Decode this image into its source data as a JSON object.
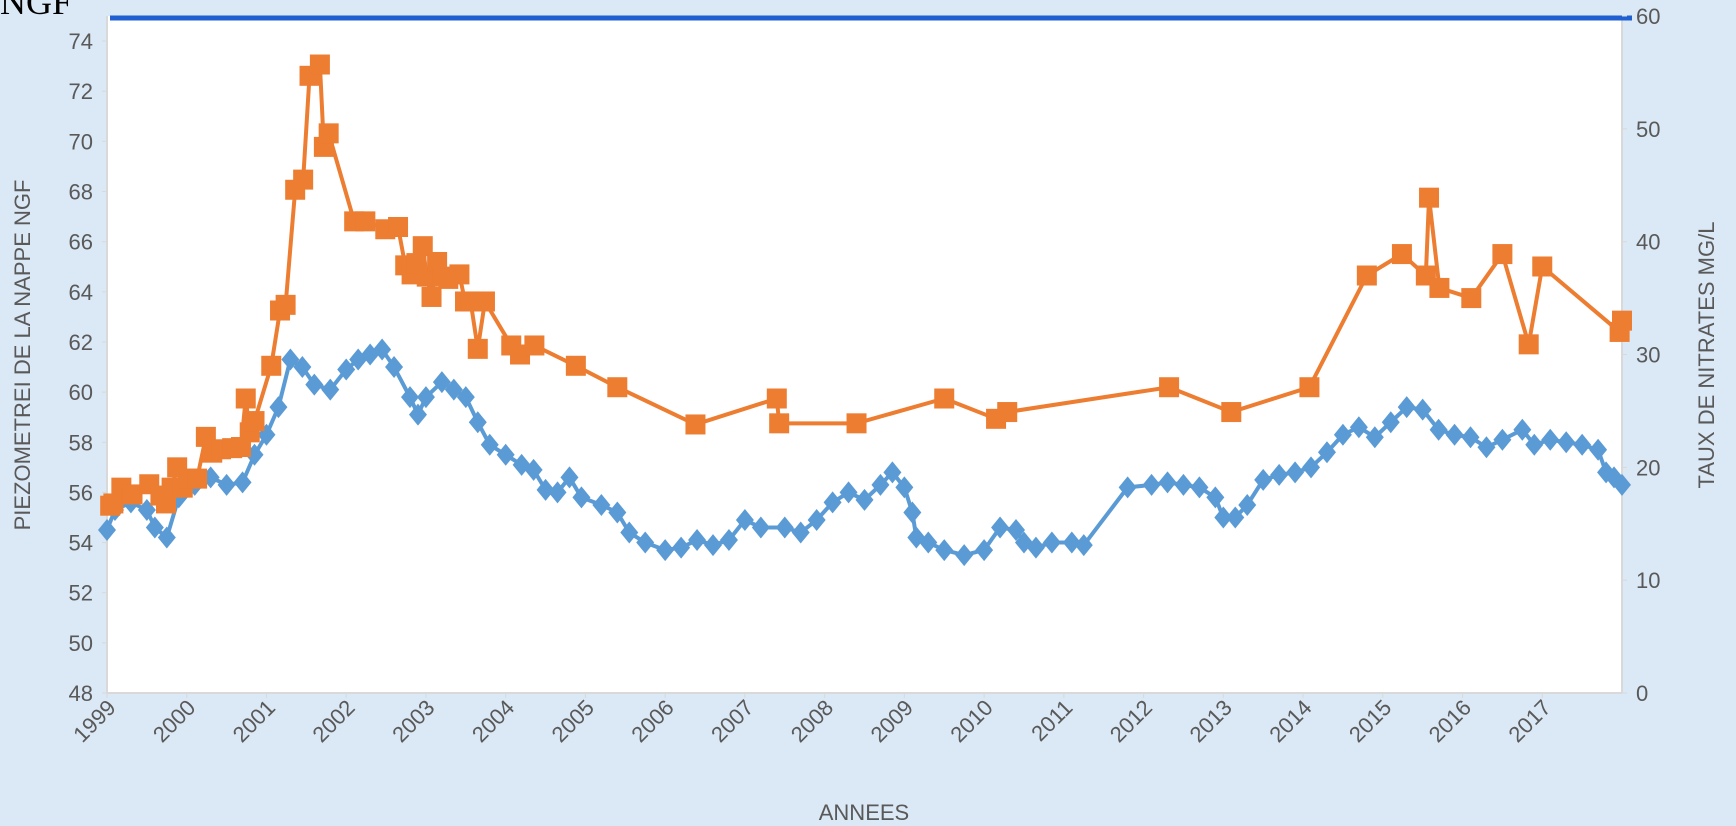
{
  "chart_data": {
    "type": "line",
    "title": "NGF",
    "xlabel": "ANNEES",
    "ylabel": "PIEZOMETREI DE LA NAPPE NGF",
    "y2label": "TAUX DE NITRATES MG/L",
    "xlim": [
      1999,
      2018
    ],
    "xticks": [
      1999,
      2000,
      2001,
      2002,
      2003,
      2004,
      2005,
      2006,
      2007,
      2008,
      2009,
      2010,
      2011,
      2012,
      2013,
      2014,
      2015,
      2016,
      2017
    ],
    "ylim": [
      48,
      75
    ],
    "yticks": [
      48,
      50,
      52,
      54,
      56,
      58,
      60,
      62,
      64,
      66,
      68,
      70,
      72,
      74
    ],
    "y2lim": [
      0,
      60
    ],
    "y2ticks": [
      0,
      10,
      20,
      30,
      40,
      50,
      60
    ],
    "series": [
      {
        "color": "#5b9bd5",
        "marker": "diamond",
        "x": [
          1999.0,
          1999.1,
          1999.3,
          1999.5,
          1999.6,
          1999.75,
          1999.9,
          2000.1,
          2000.3,
          2000.5,
          2000.7,
          2000.85,
          2001.0,
          2001.15,
          2001.3,
          2001.45,
          2001.6,
          2001.8,
          2002.0,
          2002.15,
          2002.3,
          2002.45,
          2002.6,
          2002.8,
          2002.9,
          2003.0,
          2003.2,
          2003.35,
          2003.5,
          2003.65,
          2003.8,
          2004.0,
          2004.2,
          2004.35,
          2004.5,
          2004.65,
          2004.8,
          2004.95,
          2005.2,
          2005.4,
          2005.55,
          2005.75,
          2006.0,
          2006.2,
          2006.4,
          2006.6,
          2006.8,
          2007.0,
          2007.2,
          2007.5,
          2007.7,
          2007.9,
          2008.1,
          2008.3,
          2008.5,
          2008.7,
          2008.85,
          2009.0,
          2009.1,
          2009.15,
          2009.3,
          2009.5,
          2009.75,
          2010.0,
          2010.2,
          2010.4,
          2010.5,
          2010.65,
          2010.85,
          2011.1,
          2011.25,
          2011.8,
          2012.1,
          2012.3,
          2012.5,
          2012.7,
          2012.9,
          2013.0,
          2013.15,
          2013.3,
          2013.5,
          2013.7,
          2013.9,
          2014.1,
          2014.3,
          2014.5,
          2014.7,
          2014.9,
          2015.1,
          2015.3,
          2015.5,
          2015.7,
          2015.9,
          2016.1,
          2016.3,
          2016.5,
          2016.75,
          2016.9,
          2017.1,
          2017.3,
          2017.5,
          2017.7,
          2017.8,
          2017.9,
          2018.0
        ],
        "values": [
          54.5,
          55.3,
          55.6,
          55.3,
          54.6,
          54.2,
          55.8,
          56.3,
          56.6,
          56.3,
          56.4,
          57.5,
          58.3,
          59.4,
          61.3,
          61.0,
          60.3,
          60.1,
          60.9,
          61.3,
          61.5,
          61.7,
          61.0,
          59.8,
          59.1,
          59.8,
          60.4,
          60.1,
          59.8,
          58.8,
          57.9,
          57.5,
          57.1,
          56.9,
          56.1,
          56.0,
          56.6,
          55.8,
          55.5,
          55.2,
          54.4,
          54.0,
          53.7,
          53.8,
          54.1,
          53.9,
          54.1,
          54.9,
          54.6,
          54.6,
          54.4,
          54.9,
          55.6,
          56.0,
          55.7,
          56.3,
          56.8,
          56.2,
          55.2,
          54.2,
          54.0,
          53.7,
          53.5,
          53.7,
          54.6,
          54.5,
          54.0,
          53.8,
          54.0,
          54.0,
          53.9,
          56.2,
          56.3,
          56.4,
          56.3,
          56.2,
          55.8,
          55.0,
          55.0,
          55.5,
          56.5,
          56.7,
          56.8,
          57.0,
          57.6,
          58.3,
          58.6,
          58.2,
          58.8,
          59.4,
          59.3,
          58.5,
          58.3,
          58.2,
          57.8,
          58.1,
          58.5,
          57.9,
          58.1,
          58.0,
          57.9,
          57.7,
          56.8,
          56.6,
          56.3
        ]
      },
      {
        "color": "#ed7d31",
        "marker": "square",
        "axis": "y2",
        "x": [
          1999.04,
          1999.08,
          1999.18,
          1999.32,
          1999.53,
          1999.67,
          1999.74,
          1999.81,
          1999.88,
          1999.95,
          2000.03,
          2000.13,
          2000.24,
          2000.32,
          2000.43,
          2000.57,
          2000.68,
          2000.74,
          2000.79,
          2000.85,
          2001.06,
          2001.17,
          2001.24,
          2001.36,
          2001.46,
          2001.54,
          2001.67,
          2001.72,
          2001.78,
          2002.1,
          2002.24,
          2002.49,
          2002.65,
          2002.74,
          2002.82,
          2002.88,
          2002.96,
          2003.01,
          2003.07,
          2003.14,
          2003.21,
          2003.28,
          2003.42,
          2003.49,
          2003.56,
          2003.65,
          2003.74,
          2004.07,
          2004.18,
          2004.36,
          2004.88,
          2005.4,
          2006.38,
          2007.4,
          2007.43,
          2008.4,
          2009.5,
          2010.15,
          2010.29,
          2012.32,
          2013.1,
          2014.08,
          2014.8,
          2015.24,
          2015.54,
          2015.58,
          2015.71,
          2016.11,
          2016.5,
          2016.83,
          2017.0,
          2017.97,
          2018.0
        ],
        "values": [
          16.6,
          16.8,
          18.2,
          17.6,
          18.5,
          17.5,
          16.8,
          18.2,
          20.0,
          18.2,
          19.0,
          19.0,
          22.7,
          21.3,
          21.6,
          21.7,
          21.8,
          26.1,
          23.1,
          24.1,
          29.0,
          33.9,
          34.4,
          44.6,
          45.5,
          54.7,
          55.7,
          48.4,
          49.6,
          41.8,
          41.8,
          41.1,
          41.3,
          37.9,
          37.1,
          38.1,
          39.6,
          36.9,
          35.1,
          38.2,
          36.9,
          36.7,
          37.1,
          34.7,
          34.7,
          30.5,
          34.7,
          30.8,
          30.0,
          30.8,
          29.0,
          27.1,
          23.8,
          26.1,
          23.9,
          23.9,
          26.1,
          24.3,
          24.9,
          27.1,
          24.9,
          27.1,
          37.0,
          38.9,
          37.0,
          43.9,
          35.9,
          35.0,
          38.9,
          30.9,
          37.8,
          32.0,
          33.0
        ]
      }
    ]
  }
}
